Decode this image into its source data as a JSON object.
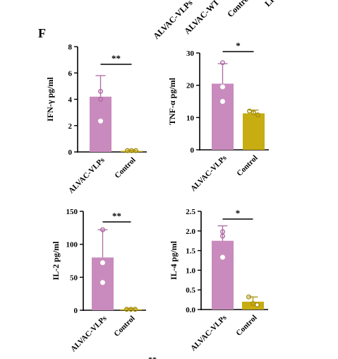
{
  "panel_label": "F",
  "top_cut_labels": [
    "ALVAC-VLPs",
    "ALVAC-WT",
    "Control",
    "LPS"
  ],
  "bottom_cut_text": "**",
  "colors": {
    "alvac": "#c98bbd",
    "alvac_edge": "#b06aa3",
    "control": "#c7ac12",
    "control_edge": "#a68f0b",
    "axis": "#000000"
  },
  "chart_data": [
    {
      "type": "bar",
      "ylabel": "IFN-γ pg/ml",
      "categories": [
        "ALVAC-VLPs",
        "Control"
      ],
      "values": [
        4.2,
        0.08
      ],
      "errors": [
        1.6,
        0.05
      ],
      "points": [
        [
          4.6,
          4.0,
          2.35
        ],
        [
          0.1,
          0.1,
          0.1
        ]
      ],
      "ylim": [
        0,
        8
      ],
      "yticks": [
        "0",
        "2",
        "4",
        "6",
        "8"
      ],
      "significance": "**"
    },
    {
      "type": "bar",
      "ylabel": "TNF-α pg/ml",
      "categories": [
        "ALVAC-VLPs",
        "Control"
      ],
      "values": [
        20.5,
        11.3
      ],
      "errors": [
        6.2,
        1.0
      ],
      "points": [
        [
          27.0,
          19.5,
          15.0
        ],
        [
          12.0,
          11.5,
          10.8
        ]
      ],
      "ylim": [
        0,
        30
      ],
      "yticks": [
        "0",
        "10",
        "20",
        "30"
      ],
      "significance": "*"
    },
    {
      "type": "bar",
      "ylabel": "IL-2 pg/ml",
      "categories": [
        "ALVAC-VLPs",
        "Control"
      ],
      "values": [
        80,
        1.5
      ],
      "errors": [
        42,
        1.0
      ],
      "points": [
        [
          122,
          72,
          42
        ],
        [
          1.5,
          1.5,
          1.5
        ]
      ],
      "ylim": [
        0,
        150
      ],
      "yticks": [
        "0",
        "50",
        "100",
        "150"
      ],
      "significance": "**"
    },
    {
      "type": "bar",
      "ylabel": "IL-4 pg/ml",
      "categories": [
        "ALVAC-VLPs",
        "Control"
      ],
      "values": [
        1.75,
        0.2
      ],
      "errors": [
        0.38,
        0.12
      ],
      "points": [
        [
          1.98,
          1.87,
          1.33
        ],
        [
          0.32,
          0.15,
          0.12
        ]
      ],
      "ylim": [
        0,
        2.5
      ],
      "yticks": [
        "0.0",
        "0.5",
        "1.0",
        "1.5",
        "2.0",
        "2.5"
      ],
      "significance": "*"
    }
  ]
}
